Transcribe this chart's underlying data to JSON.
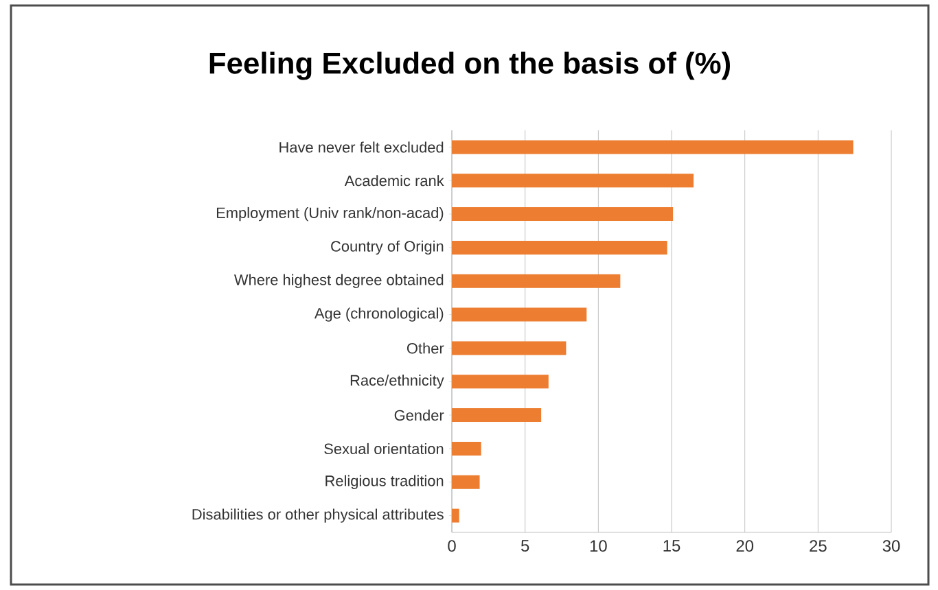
{
  "chart_data": {
    "type": "bar",
    "orientation": "horizontal",
    "title": "Feeling Excluded on the basis of (%)",
    "categories": [
      "Have never felt excluded",
      "Academic rank",
      "Employment (Univ rank/non-acad)",
      "Country of Origin",
      "Where highest degree obtained",
      "Age (chronological)",
      "Other",
      "Race/ethnicity",
      "Gender",
      "Sexual orientation",
      "Religious tradition",
      "Disabilities or other physical attributes"
    ],
    "values": [
      27.4,
      16.5,
      15.1,
      14.7,
      11.5,
      9.2,
      7.8,
      6.6,
      6.1,
      2.0,
      1.9,
      0.5
    ],
    "color": "#ed7d31",
    "xlim": [
      0,
      30
    ],
    "xticks": [
      0,
      5,
      10,
      15,
      20,
      25,
      30
    ],
    "grid": "x"
  }
}
